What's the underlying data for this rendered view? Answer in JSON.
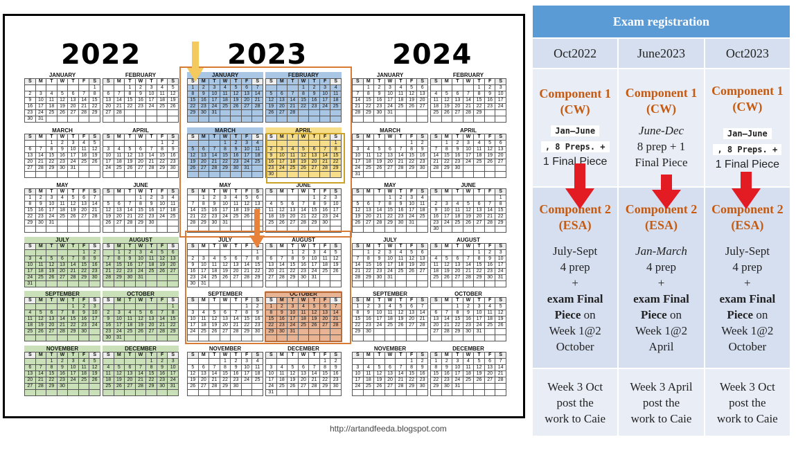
{
  "calendar": {
    "years": [
      "2022",
      "2023",
      "2024"
    ],
    "month_names": [
      "JANUARY",
      "FEBRUARY",
      "MARCH",
      "APRIL",
      "MAY",
      "JUNE",
      "JULY",
      "AUGUST",
      "SEPTEMBER",
      "OCTOBER",
      "NOVEMBER",
      "DECEMBER"
    ],
    "day_headers": [
      "S",
      "M",
      "T",
      "W",
      "T",
      "F",
      "S"
    ],
    "highlights": [
      {
        "year": "2022",
        "months": [
          6,
          7,
          8,
          9,
          10,
          11
        ],
        "color": "#c9e0b8"
      },
      {
        "year": "2023",
        "months": [
          0,
          1,
          2
        ],
        "color": "#a9c6e4"
      },
      {
        "year": "2023",
        "months": [
          3
        ],
        "color": "#f6dd8a"
      },
      {
        "year": "2023",
        "months": [
          9
        ],
        "color": "#e8b493"
      }
    ],
    "accent_orange": "#d97a33",
    "accent_yellow": "#f4c95d"
  },
  "credit": "http://artandfeeda.blogspot.com",
  "exam": {
    "title": "Exam registration",
    "columns": [
      {
        "session": "Oct2022",
        "c1_title": "Component 1 (CW)",
        "c1_lines": [
          "Jan–June",
          ", 8 Preps. +"
        ],
        "c1_tail": "1 Final Piece",
        "c2_title": "Component 2 (ESA)",
        "c2_period": "July-Sept",
        "c2_prep": "4 prep",
        "c2_plus": "+",
        "c2_exam1": "exam Final",
        "c2_exam2": "Piece",
        "c2_on": " on",
        "c2_week": "Week 1@2",
        "c2_month": "October",
        "c3_l1": "Week 3 Oct",
        "c3_l2": "post the",
        "c3_l3": "work to Caie"
      },
      {
        "session": "June2023",
        "c1_title": "Component 1 (CW)",
        "c1_italic": "June-Dec",
        "c1_l2": "8 prep + 1",
        "c1_l3": "Final Piece",
        "c2_title": "Component 2 (ESA)",
        "c2_period": "Jan-March",
        "c2_prep": "4 prep",
        "c2_plus": "+",
        "c2_exam1": "exam Final",
        "c2_exam2": "Piece",
        "c2_on": " on",
        "c2_week": "Week 1@2",
        "c2_month": "April",
        "c3_l1": "Week 3 April",
        "c3_l2": "post the",
        "c3_l3": "work to Caie"
      },
      {
        "session": "Oct2023",
        "c1_title": "Component 1 (CW)",
        "c1_lines": [
          "Jan–June",
          ", 8 Preps. +"
        ],
        "c1_tail": "1 Final Piece",
        "c2_title": "Component 2 (ESA)",
        "c2_period": "July-Sept",
        "c2_prep": "4 prep",
        "c2_plus": "+",
        "c2_exam1": "exam Final",
        "c2_exam2": "Piece",
        "c2_on": " on",
        "c2_week": "Week 1@2",
        "c2_month": "October",
        "c3_l1": "Week 3 Oct",
        "c3_l2": "post the",
        "c3_l3": "work to Caie"
      }
    ],
    "arrow_color": "#e31b23"
  }
}
